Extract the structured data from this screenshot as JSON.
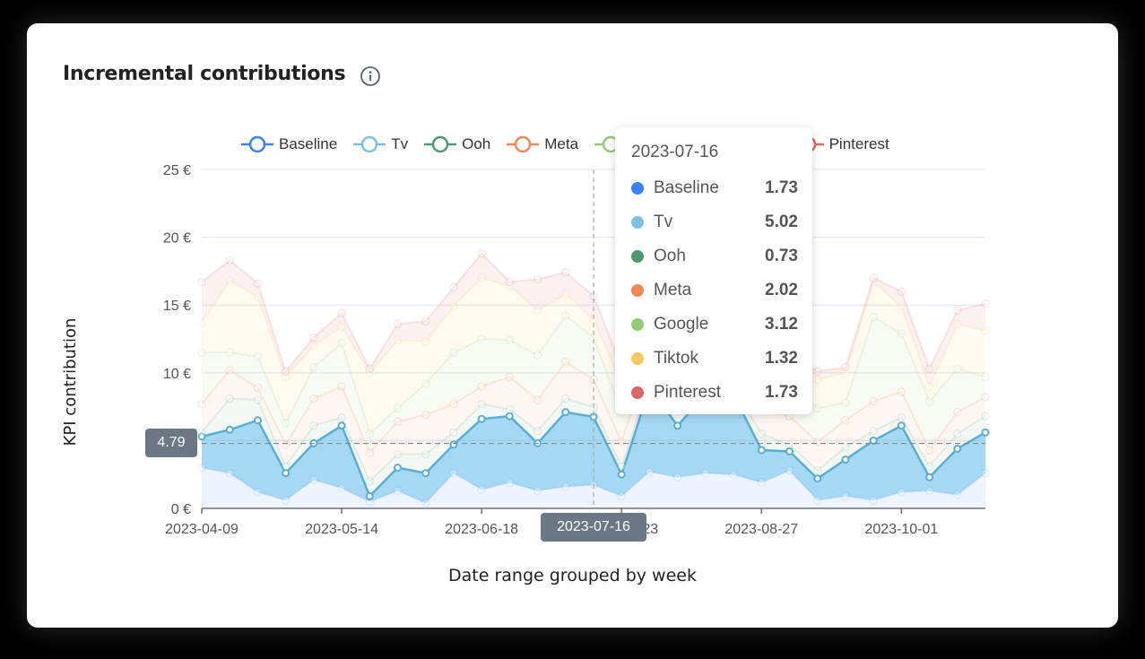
{
  "header": {
    "title": "Incremental contributions",
    "info_icon": "info-circle-icon"
  },
  "legend": [
    {
      "label": "Baseline",
      "color": "#3b82f6"
    },
    {
      "label": "Tv",
      "color": "#7ec0e0"
    },
    {
      "label": "Ooh",
      "color": "#4e9a6e"
    },
    {
      "label": "Meta",
      "color": "#f0875a"
    },
    {
      "label": "Google",
      "color": "#93cc74"
    },
    {
      "label": "Tiktok",
      "color": "#f5c95c"
    },
    {
      "label": "Pinterest",
      "color": "#e06666"
    }
  ],
  "tooltip": {
    "date": "2023-07-16",
    "rows": [
      {
        "label": "Baseline",
        "value": "1.73",
        "color": "#3b82f6"
      },
      {
        "label": "Tv",
        "value": "5.02",
        "color": "#7ec0e0"
      },
      {
        "label": "Ooh",
        "value": "0.73",
        "color": "#4e9a6e"
      },
      {
        "label": "Meta",
        "value": "2.02",
        "color": "#f0875a"
      },
      {
        "label": "Google",
        "value": "3.12",
        "color": "#93cc74"
      },
      {
        "label": "Tiktok",
        "value": "1.32",
        "color": "#f5c95c"
      },
      {
        "label": "Pinterest",
        "value": "1.73",
        "color": "#e06666"
      }
    ]
  },
  "crosshair": {
    "y_value_label": "4.79",
    "x_value_label": "2023-07-16"
  },
  "axes": {
    "y_label": "KPI contribution",
    "x_label": "Date range grouped by week",
    "y_ticks": [
      "0 €",
      "5 €",
      "10 €",
      "15 €",
      "20 €",
      "25 €"
    ],
    "x_ticks": [
      "2023-04-09",
      "2023-05-14",
      "2023-06-18",
      "2023-07-23",
      "2023-08-27",
      "2023-10-01"
    ]
  },
  "chart_data": {
    "type": "area",
    "stacked": true,
    "title": "Incremental contributions",
    "xlabel": "Date range grouped by week",
    "ylabel": "KPI contribution",
    "ylim": [
      0,
      25
    ],
    "y_unit": "€",
    "grid": true,
    "legend_position": "top",
    "x": [
      "2023-04-09",
      "2023-04-16",
      "2023-04-23",
      "2023-04-30",
      "2023-05-07",
      "2023-05-14",
      "2023-05-21",
      "2023-05-28",
      "2023-06-04",
      "2023-06-11",
      "2023-06-18",
      "2023-06-25",
      "2023-07-02",
      "2023-07-09",
      "2023-07-16",
      "2023-07-23",
      "2023-07-30",
      "2023-08-06",
      "2023-08-13",
      "2023-08-20",
      "2023-08-27",
      "2023-09-03",
      "2023-09-10",
      "2023-09-17",
      "2023-09-24",
      "2023-10-01",
      "2023-10-08",
      "2023-10-15",
      "2023-10-22"
    ],
    "series": [
      {
        "name": "Baseline",
        "color": "#3b82f6",
        "values": [
          3.0,
          2.6,
          1.2,
          0.6,
          2.1,
          1.5,
          0.5,
          1.3,
          0.4,
          2.6,
          1.4,
          1.9,
          1.3,
          1.6,
          1.73,
          0.9,
          2.7,
          2.3,
          2.6,
          2.5,
          1.9,
          2.8,
          0.6,
          0.9,
          0.6,
          1.2,
          1.3,
          1.0,
          2.6
        ]
      },
      {
        "name": "Tv",
        "color": "#7ec0e0",
        "values": [
          2.3,
          3.2,
          5.3,
          2.0,
          2.7,
          4.6,
          0.4,
          1.7,
          2.2,
          2.1,
          5.2,
          4.9,
          3.5,
          5.5,
          5.02,
          1.6,
          6.2,
          3.8,
          5.8,
          5.9,
          2.4,
          1.4,
          1.6,
          2.7,
          4.4,
          4.9,
          1.0,
          3.4,
          3.0
        ]
      },
      {
        "name": "Ooh",
        "color": "#4e9a6e",
        "values": [
          0.3,
          2.3,
          1.5,
          0.5,
          1.3,
          0.6,
          1.1,
          1.0,
          1.4,
          0.9,
          1.1,
          0.5,
          0.9,
          1.0,
          0.73,
          0.6,
          0.6,
          1.1,
          0.6,
          0.5,
          1.2,
          0.5,
          0.6,
          0.9,
          0.7,
          0.6,
          0.8,
          1.1,
          1.2
        ]
      },
      {
        "name": "Meta",
        "color": "#f0875a",
        "values": [
          2.1,
          2.1,
          0.9,
          1.6,
          2.0,
          2.3,
          2.1,
          2.4,
          2.9,
          2.1,
          1.3,
          2.4,
          2.3,
          2.7,
          2.02,
          1.8,
          1.9,
          2.0,
          1.7,
          1.9,
          1.9,
          2.1,
          2.1,
          2.0,
          2.2,
          1.9,
          1.2,
          1.6,
          1.4
        ]
      },
      {
        "name": "Google",
        "color": "#93cc74",
        "values": [
          3.8,
          1.3,
          2.3,
          1.6,
          2.3,
          3.2,
          1.4,
          1.0,
          2.3,
          3.8,
          3.5,
          2.7,
          3.3,
          3.4,
          3.12,
          2.2,
          2.6,
          2.1,
          2.6,
          2.4,
          2.5,
          2.6,
          2.5,
          1.3,
          6.2,
          4.3,
          3.6,
          3.2,
          1.5
        ]
      },
      {
        "name": "Tiktok",
        "color": "#f5c95c",
        "values": [
          2.2,
          5.3,
          4.4,
          3.4,
          1.6,
          1.2,
          4.5,
          5.0,
          3.1,
          3.4,
          4.5,
          4.0,
          3.3,
          1.6,
          1.32,
          2.1,
          3.0,
          1.8,
          2.3,
          2.4,
          2.0,
          1.6,
          2.1,
          2.2,
          2.6,
          2.0,
          1.1,
          3.3,
          3.4
        ]
      },
      {
        "name": "Pinterest",
        "color": "#e06666",
        "values": [
          3.0,
          1.5,
          1.0,
          0.4,
          0.6,
          1.0,
          0.3,
          1.2,
          1.5,
          1.4,
          1.8,
          0.3,
          2.3,
          1.6,
          1.73,
          1.2,
          1.1,
          1.4,
          1.1,
          0.6,
          0.5,
          0.4,
          0.6,
          0.4,
          0.3,
          1.1,
          1.3,
          1.0,
          2.0
        ]
      }
    ],
    "tooltip": {
      "x": "2023-07-16",
      "Baseline": 1.73,
      "Tv": 5.02,
      "Ooh": 0.73,
      "Meta": 2.02,
      "Google": 3.12,
      "Tiktok": 1.32,
      "Pinterest": 1.73
    },
    "crosshair_y": 4.79
  }
}
